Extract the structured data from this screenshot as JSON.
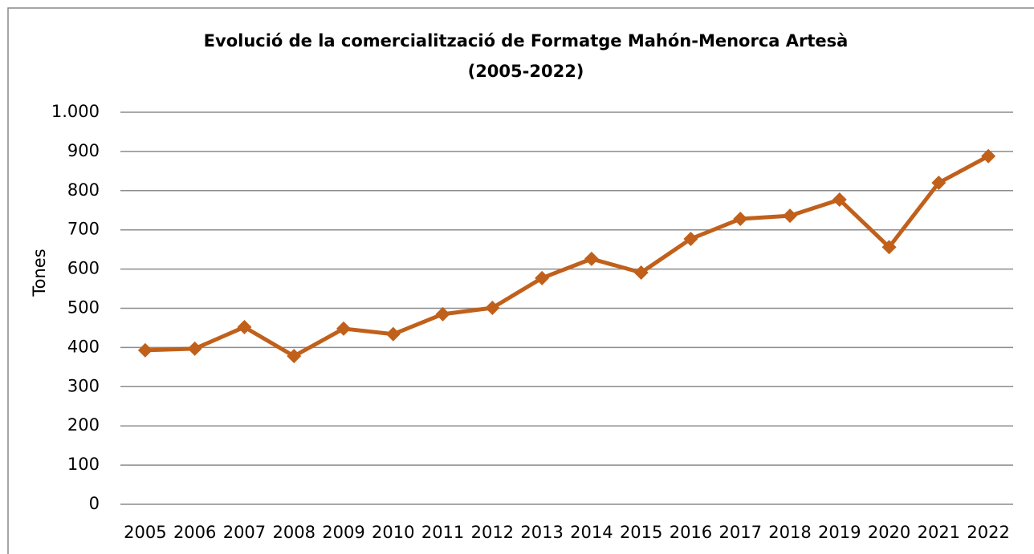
{
  "chart_data": {
    "type": "line",
    "title": [
      "Evolució de la comercialització de Formatge Mahón-Menorca Artesà",
      "(2005-2022)"
    ],
    "y_label": "Tones",
    "categories": [
      "2005",
      "2006",
      "2007",
      "2008",
      "2009",
      "2010",
      "2011",
      "2012",
      "2013",
      "2014",
      "2015",
      "2016",
      "2017",
      "2018",
      "2019",
      "2020",
      "2021",
      "2022"
    ],
    "series": [
      {
        "name": "Tones",
        "color": "#c0601b",
        "values": [
          393,
          397,
          452,
          378,
          448,
          434,
          485,
          501,
          577,
          626,
          591,
          677,
          728,
          736,
          777,
          656,
          820,
          888
        ]
      }
    ],
    "ylim": [
      0,
      1000
    ],
    "yticks": [
      0,
      100,
      200,
      300,
      400,
      500,
      600,
      700,
      800,
      900,
      {
        "value": 1000,
        "label": "1.000"
      }
    ],
    "grid": true
  }
}
